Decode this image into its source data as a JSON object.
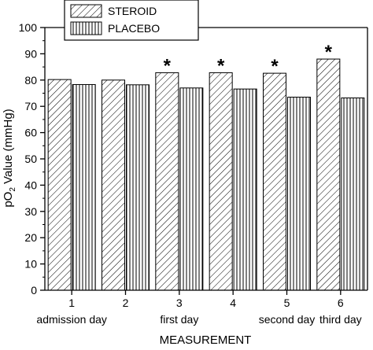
{
  "chart_data": {
    "type": "bar",
    "categories": [
      "1",
      "2",
      "3",
      "4",
      "5",
      "6"
    ],
    "category_sublabels": [
      "admission day",
      "",
      "first day",
      "",
      "second day",
      "third day"
    ],
    "series": [
      {
        "name": "STEROID",
        "values": [
          80.2,
          80.0,
          82.8,
          82.8,
          82.6,
          88.0
        ],
        "pattern": "diagonal-hatch",
        "significant": [
          false,
          false,
          true,
          true,
          true,
          true
        ]
      },
      {
        "name": "PLACEBO",
        "values": [
          78.3,
          78.2,
          77.0,
          76.6,
          73.5,
          73.2
        ],
        "pattern": "vertical-lines"
      }
    ],
    "significance_marker": "*",
    "xlabel": "MEASUREMENT",
    "ylabel_parts": {
      "pre": "pO",
      "sub": "2",
      "post": " Value (mmHg)"
    },
    "ylim": [
      0,
      100
    ],
    "yticks": [
      0,
      10,
      20,
      30,
      40,
      50,
      60,
      70,
      80,
      90,
      100
    ],
    "grid": false,
    "legend_position": "top-left"
  }
}
